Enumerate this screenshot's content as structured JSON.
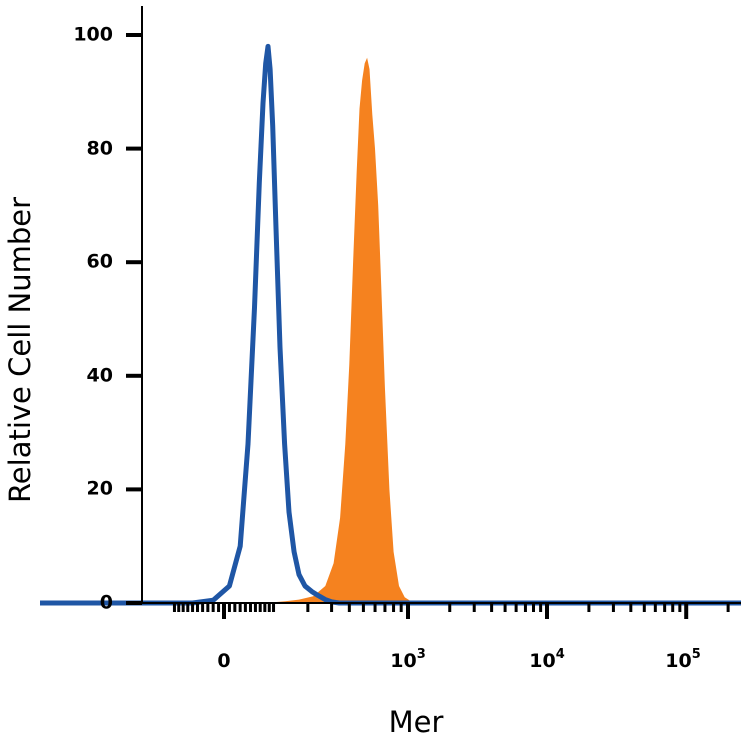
{
  "chart_data": {
    "type": "area",
    "title": "",
    "xlabel": "Mer",
    "ylabel": "Relative Cell Number",
    "xscale": "biexponential",
    "ylim": [
      0,
      100
    ],
    "yticks": [
      0,
      20,
      40,
      60,
      80,
      100
    ],
    "ytick_labels": [
      "0",
      "20",
      "40",
      "60",
      "80",
      "100"
    ],
    "xticks": [
      {
        "base": "0",
        "exp": ""
      },
      {
        "base": "10",
        "exp": "3"
      },
      {
        "base": "10",
        "exp": "4"
      },
      {
        "base": "10",
        "exp": "5"
      }
    ],
    "grid": false,
    "legend": "none",
    "series": [
      {
        "style": "filled",
        "color": "#f5821f",
        "values": [
          {
            "x": 80,
            "y": 0
          },
          {
            "x": 130,
            "y": 0.3
          },
          {
            "x": 170,
            "y": 0.6
          },
          {
            "x": 220,
            "y": 1.2
          },
          {
            "x": 270,
            "y": 3
          },
          {
            "x": 310,
            "y": 7
          },
          {
            "x": 345,
            "y": 15
          },
          {
            "x": 375,
            "y": 28
          },
          {
            "x": 400,
            "y": 42
          },
          {
            "x": 425,
            "y": 60
          },
          {
            "x": 450,
            "y": 76
          },
          {
            "x": 470,
            "y": 87
          },
          {
            "x": 490,
            "y": 92
          },
          {
            "x": 510,
            "y": 95
          },
          {
            "x": 530,
            "y": 96
          },
          {
            "x": 550,
            "y": 94
          },
          {
            "x": 575,
            "y": 86
          },
          {
            "x": 600,
            "y": 80
          },
          {
            "x": 630,
            "y": 70
          },
          {
            "x": 660,
            "y": 56
          },
          {
            "x": 700,
            "y": 38
          },
          {
            "x": 750,
            "y": 20
          },
          {
            "x": 800,
            "y": 9
          },
          {
            "x": 870,
            "y": 3
          },
          {
            "x": 950,
            "y": 1
          },
          {
            "x": 1050,
            "y": 0.3
          },
          {
            "x": 1150,
            "y": 0
          }
        ]
      },
      {
        "style": "line",
        "color": "#1f56a5",
        "values": [
          {
            "x": -60,
            "y": 0
          },
          {
            "x": -20,
            "y": 0.5
          },
          {
            "x": 10,
            "y": 3
          },
          {
            "x": 30,
            "y": 10
          },
          {
            "x": 45,
            "y": 28
          },
          {
            "x": 58,
            "y": 52
          },
          {
            "x": 68,
            "y": 74
          },
          {
            "x": 76,
            "y": 88
          },
          {
            "x": 82,
            "y": 95
          },
          {
            "x": 87,
            "y": 98
          },
          {
            "x": 92,
            "y": 94
          },
          {
            "x": 98,
            "y": 84
          },
          {
            "x": 106,
            "y": 66
          },
          {
            "x": 116,
            "y": 45
          },
          {
            "x": 128,
            "y": 28
          },
          {
            "x": 140,
            "y": 16
          },
          {
            "x": 155,
            "y": 9
          },
          {
            "x": 170,
            "y": 5
          },
          {
            "x": 190,
            "y": 3
          },
          {
            "x": 215,
            "y": 2
          },
          {
            "x": 240,
            "y": 1.3
          },
          {
            "x": 270,
            "y": 0.6
          },
          {
            "x": 300,
            "y": 0.2
          },
          {
            "x": 340,
            "y": 0
          }
        ]
      }
    ]
  },
  "colors": {
    "filled_series": "#f5821f",
    "line_series": "#1f56a5",
    "axis": "#000000"
  }
}
